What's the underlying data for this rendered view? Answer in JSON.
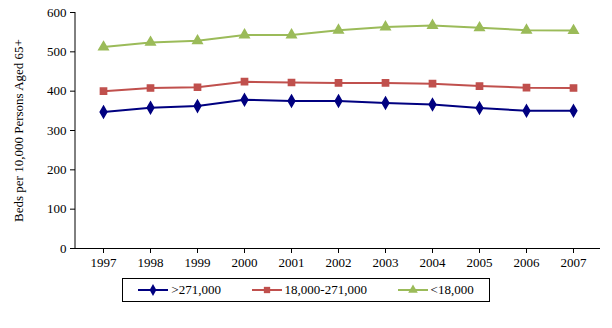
{
  "chart_data": {
    "type": "line",
    "y_label": "Beds per 10,000 Persons Aged 65+",
    "categories": [
      "1997",
      "1998",
      "1999",
      "2000",
      "2001",
      "2002",
      "2003",
      "2004",
      "2005",
      "2006",
      "2007"
    ],
    "series": [
      {
        "name": ">271,000",
        "color": "#000080",
        "marker": "diamond",
        "values": [
          347,
          358,
          362,
          378,
          375,
          375,
          370,
          366,
          357,
          350,
          350
        ]
      },
      {
        "name": "18,000-271,000",
        "color": "#c0504d",
        "marker": "square",
        "values": [
          400,
          408,
          410,
          424,
          422,
          421,
          421,
          419,
          413,
          409,
          408
        ]
      },
      {
        "name": "<18,000",
        "color": "#9bbb59",
        "marker": "triangle",
        "values": [
          512,
          524,
          528,
          543,
          543,
          555,
          563,
          567,
          561,
          555,
          554
        ]
      }
    ],
    "ylim": [
      0,
      600
    ],
    "yticks": [
      0,
      100,
      200,
      300,
      400,
      500,
      600
    ],
    "grid": false,
    "legend": "bottom"
  }
}
